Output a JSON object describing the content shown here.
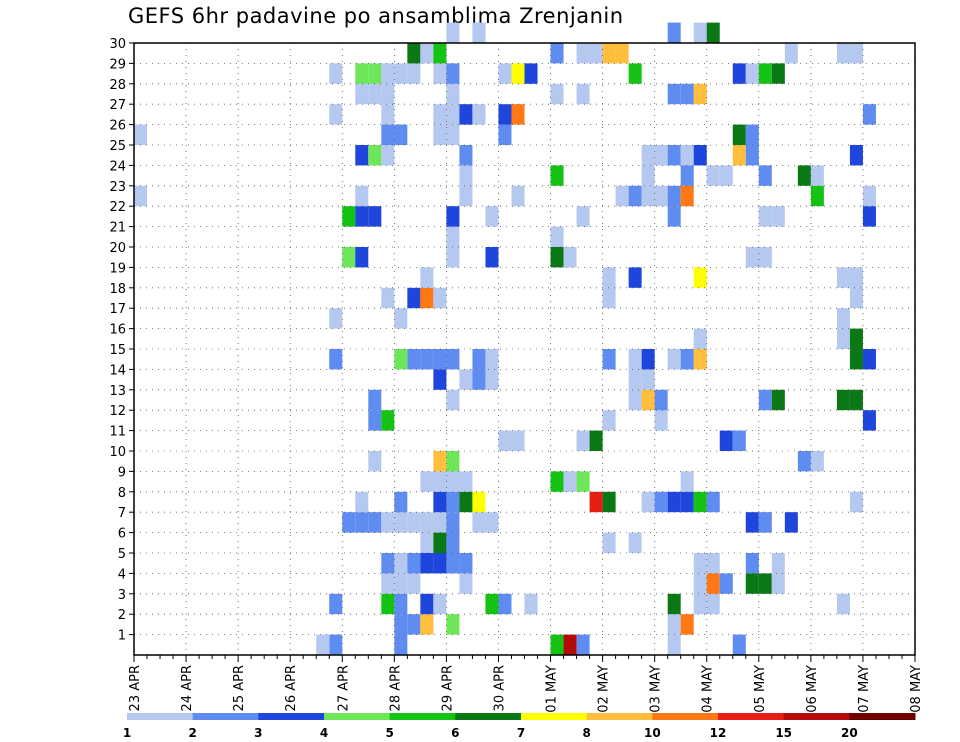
{
  "chart_data": {
    "type": "heatmap",
    "title": "GEFS 6hr padavine po ansamblima Zrenjanin",
    "xlabel": "",
    "ylabel": "",
    "x_ticks": [
      "23 APR",
      "24 APR",
      "25 APR",
      "26 APR",
      "27 APR",
      "28 APR",
      "29 APR",
      "30 APR",
      "01 MAY",
      "02 MAY",
      "03 MAY",
      "04 MAY",
      "05 MAY",
      "06 MAY",
      "07 MAY",
      "08 MAY"
    ],
    "x_range": [
      "2024-04-23T00:00",
      "2024-05-08T00:00"
    ],
    "time_step_hours": 6,
    "y_ticks": [
      1,
      2,
      3,
      4,
      5,
      6,
      7,
      8,
      9,
      10,
      11,
      12,
      13,
      14,
      15,
      16,
      17,
      18,
      19,
      20,
      21,
      22,
      23,
      24,
      25,
      26,
      27,
      28,
      29,
      30
    ],
    "y_range": [
      0,
      30
    ],
    "grid": true,
    "legend_placement": "bottom",
    "color_levels": [
      1,
      2,
      3,
      4,
      5,
      6,
      7,
      8,
      10,
      12,
      15,
      20
    ],
    "colors": [
      "#b4c8f0",
      "#5f8cf0",
      "#1e46dc",
      "#6ee65a",
      "#14c314",
      "#0a7814",
      "#ffff00",
      "#ffbe3c",
      "#ff7814",
      "#e61e14",
      "#b40a0a",
      "#6e0000"
    ],
    "cells": [
      [
        "04-26T18",
        0,
        2
      ],
      [
        "04-26T18",
        2,
        2
      ],
      [
        "04-26T18",
        14,
        2
      ],
      [
        "04-26T18",
        16,
        1
      ],
      [
        "04-26T18",
        26,
        1
      ],
      [
        "04-26T18",
        28,
        1
      ],
      [
        "04-26T12",
        0,
        1
      ],
      [
        "04-23T00",
        22,
        1
      ],
      [
        "04-23T00",
        25,
        1
      ],
      [
        "04-27T00",
        6,
        2
      ],
      [
        "04-27T00",
        21,
        5
      ],
      [
        "04-27T00",
        19,
        4
      ],
      [
        "04-27T06",
        6,
        2
      ],
      [
        "04-27T06",
        7,
        1
      ],
      [
        "04-27T06",
        21,
        3
      ],
      [
        "04-27T06",
        24,
        3
      ],
      [
        "04-27T06",
        19,
        3
      ],
      [
        "04-27T06",
        22,
        1
      ],
      [
        "04-27T06",
        27,
        1
      ],
      [
        "04-27T06",
        28,
        4
      ],
      [
        "04-27T12",
        6,
        2
      ],
      [
        "04-27T12",
        11,
        2
      ],
      [
        "04-27T12",
        12,
        2
      ],
      [
        "04-27T12",
        9,
        1
      ],
      [
        "04-27T12",
        21,
        3
      ],
      [
        "04-27T12",
        24,
        4
      ],
      [
        "04-27T12",
        27,
        1
      ],
      [
        "04-27T12",
        28,
        4
      ],
      [
        "04-27T18",
        6,
        1
      ],
      [
        "04-27T18",
        2,
        5
      ],
      [
        "04-27T18",
        3,
        1
      ],
      [
        "04-27T18",
        4,
        2
      ],
      [
        "04-27T18",
        11,
        5
      ],
      [
        "04-27T18",
        17,
        1
      ],
      [
        "04-27T18",
        24,
        1
      ],
      [
        "04-27T18",
        25,
        2
      ],
      [
        "04-27T18",
        26,
        1
      ],
      [
        "04-27T18",
        27,
        1
      ],
      [
        "04-27T18",
        28,
        1
      ],
      [
        "04-28T00",
        0,
        2
      ],
      [
        "04-28T00",
        1,
        2
      ],
      [
        "04-28T00",
        2,
        2
      ],
      [
        "04-28T00",
        3,
        1
      ],
      [
        "04-28T00",
        4,
        1
      ],
      [
        "04-28T00",
        6,
        1
      ],
      [
        "04-28T00",
        7,
        2
      ],
      [
        "04-28T00",
        14,
        4
      ],
      [
        "04-28T00",
        16,
        1
      ],
      [
        "04-28T00",
        25,
        2
      ],
      [
        "04-28T00",
        28,
        1
      ],
      [
        "04-28T06",
        1,
        2
      ],
      [
        "04-28T06",
        3,
        1
      ],
      [
        "04-28T06",
        4,
        2
      ],
      [
        "04-28T06",
        6,
        1
      ],
      [
        "04-28T06",
        14,
        2
      ],
      [
        "04-28T06",
        17,
        3
      ],
      [
        "04-28T06",
        28,
        1
      ],
      [
        "04-28T06",
        29,
        6
      ],
      [
        "04-28T12",
        1,
        8
      ],
      [
        "04-28T12",
        2,
        3
      ],
      [
        "04-28T12",
        4,
        3
      ],
      [
        "04-28T12",
        5,
        1
      ],
      [
        "04-28T12",
        6,
        1
      ],
      [
        "04-28T12",
        8,
        1
      ],
      [
        "04-28T12",
        14,
        2
      ],
      [
        "04-28T12",
        17,
        9
      ],
      [
        "04-28T12",
        18,
        1
      ],
      [
        "04-28T12",
        29,
        1
      ],
      [
        "04-28T18",
        2,
        1
      ],
      [
        "04-28T18",
        4,
        3
      ],
      [
        "04-28T18",
        5,
        6
      ],
      [
        "04-28T18",
        6,
        1
      ],
      [
        "04-28T18",
        7,
        3
      ],
      [
        "04-28T18",
        8,
        1
      ],
      [
        "04-28T18",
        9,
        8
      ],
      [
        "04-28T18",
        13,
        3
      ],
      [
        "04-28T18",
        14,
        2
      ],
      [
        "04-28T18",
        17,
        1
      ],
      [
        "04-28T18",
        25,
        1
      ],
      [
        "04-28T18",
        26,
        1
      ],
      [
        "04-28T18",
        28,
        1
      ],
      [
        "04-28T18",
        29,
        5
      ],
      [
        "04-29T00",
        1,
        4
      ],
      [
        "04-29T00",
        4,
        2
      ],
      [
        "04-29T00",
        5,
        2
      ],
      [
        "04-29T00",
        6,
        2
      ],
      [
        "04-29T00",
        7,
        2
      ],
      [
        "04-29T00",
        8,
        1
      ],
      [
        "04-29T00",
        9,
        4
      ],
      [
        "04-29T00",
        12,
        1
      ],
      [
        "04-29T00",
        14,
        2
      ],
      [
        "04-29T00",
        19,
        1
      ],
      [
        "04-29T00",
        20,
        1
      ],
      [
        "04-29T00",
        21,
        3
      ],
      [
        "04-29T00",
        25,
        1
      ],
      [
        "04-29T00",
        26,
        1
      ],
      [
        "04-29T00",
        27,
        1
      ],
      [
        "04-29T00",
        28,
        2
      ],
      [
        "04-29T00",
        30,
        1
      ],
      [
        "04-29T06",
        3,
        1
      ],
      [
        "04-29T06",
        4,
        2
      ],
      [
        "04-29T06",
        7,
        6
      ],
      [
        "04-29T06",
        8,
        1
      ],
      [
        "04-29T06",
        13,
        1
      ],
      [
        "04-29T06",
        22,
        1
      ],
      [
        "04-29T06",
        23,
        1
      ],
      [
        "04-29T06",
        24,
        2
      ],
      [
        "04-29T06",
        26,
        3
      ],
      [
        "04-29T12",
        6,
        1
      ],
      [
        "04-29T12",
        7,
        7
      ],
      [
        "04-29T12",
        13,
        2
      ],
      [
        "04-29T12",
        14,
        2
      ],
      [
        "04-29T12",
        26,
        1
      ],
      [
        "04-29T12",
        30,
        1
      ],
      [
        "04-29T18",
        2,
        5
      ],
      [
        "04-29T18",
        6,
        1
      ],
      [
        "04-29T18",
        13,
        1
      ],
      [
        "04-29T18",
        14,
        1
      ],
      [
        "04-29T18",
        19,
        3
      ],
      [
        "04-29T18",
        21,
        1
      ],
      [
        "04-30T00",
        2,
        2
      ],
      [
        "04-30T00",
        10,
        1
      ],
      [
        "04-30T00",
        25,
        2
      ],
      [
        "04-30T00",
        26,
        3
      ],
      [
        "04-30T00",
        28,
        1
      ],
      [
        "04-30T06",
        10,
        1
      ],
      [
        "04-30T06",
        22,
        1
      ],
      [
        "04-30T06",
        26,
        9
      ],
      [
        "04-30T06",
        28,
        7
      ],
      [
        "04-30T12",
        2,
        1
      ],
      [
        "04-30T12",
        28,
        3
      ],
      [
        "05-01T00",
        0,
        5
      ],
      [
        "05-01T00",
        8,
        5
      ],
      [
        "05-01T00",
        19,
        6
      ],
      [
        "05-01T00",
        20,
        1
      ],
      [
        "05-01T00",
        23,
        5
      ],
      [
        "05-01T00",
        27,
        1
      ],
      [
        "05-01T00",
        29,
        2
      ],
      [
        "05-01T06",
        0,
        11
      ],
      [
        "05-01T06",
        8,
        1
      ],
      [
        "05-01T06",
        19,
        1
      ],
      [
        "05-01T12",
        0,
        2
      ],
      [
        "05-01T12",
        8,
        4
      ],
      [
        "05-01T12",
        10,
        1
      ],
      [
        "05-01T12",
        21,
        1
      ],
      [
        "05-01T12",
        27,
        1
      ],
      [
        "05-01T12",
        29,
        1
      ],
      [
        "05-01T18",
        7,
        10
      ],
      [
        "05-01T18",
        10,
        6
      ],
      [
        "05-01T18",
        29,
        1
      ],
      [
        "05-02T00",
        5,
        1
      ],
      [
        "05-02T00",
        7,
        6
      ],
      [
        "05-02T00",
        11,
        1
      ],
      [
        "05-02T00",
        14,
        2
      ],
      [
        "05-02T00",
        17,
        1
      ],
      [
        "05-02T00",
        18,
        1
      ],
      [
        "05-02T00",
        29,
        8
      ],
      [
        "05-02T06",
        29,
        8
      ],
      [
        "05-02T06",
        22,
        1
      ],
      [
        "05-02T12",
        5,
        1
      ],
      [
        "05-02T12",
        13,
        1
      ],
      [
        "05-02T12",
        14,
        1
      ],
      [
        "05-02T12",
        12,
        1
      ],
      [
        "05-02T12",
        18,
        3
      ],
      [
        "05-02T12",
        22,
        2
      ],
      [
        "05-02T12",
        28,
        5
      ],
      [
        "05-02T18",
        7,
        1
      ],
      [
        "05-02T18",
        12,
        8
      ],
      [
        "05-02T18",
        13,
        1
      ],
      [
        "05-02T18",
        14,
        3
      ],
      [
        "05-02T18",
        22,
        1
      ],
      [
        "05-02T18",
        23,
        1
      ],
      [
        "05-02T18",
        24,
        1
      ],
      [
        "05-03T00",
        7,
        2
      ],
      [
        "05-03T00",
        11,
        1
      ],
      [
        "05-03T00",
        12,
        2
      ],
      [
        "05-03T00",
        22,
        1
      ],
      [
        "05-03T00",
        24,
        1
      ],
      [
        "05-03T06",
        0,
        1
      ],
      [
        "05-03T06",
        1,
        1
      ],
      [
        "05-03T06",
        2,
        6
      ],
      [
        "05-03T06",
        7,
        3
      ],
      [
        "05-03T06",
        14,
        1
      ],
      [
        "05-03T06",
        21,
        2
      ],
      [
        "05-03T06",
        22,
        2
      ],
      [
        "05-03T06",
        24,
        2
      ],
      [
        "05-03T06",
        27,
        2
      ],
      [
        "05-03T06",
        30,
        2
      ],
      [
        "05-03T12",
        1,
        9
      ],
      [
        "05-03T12",
        7,
        3
      ],
      [
        "05-03T12",
        8,
        1
      ],
      [
        "05-03T12",
        14,
        2
      ],
      [
        "05-03T12",
        22,
        9
      ],
      [
        "05-03T12",
        23,
        2
      ],
      [
        "05-03T12",
        24,
        1
      ],
      [
        "05-03T12",
        27,
        2
      ],
      [
        "05-03T18",
        2,
        1
      ],
      [
        "05-03T18",
        3,
        1
      ],
      [
        "05-03T18",
        4,
        1
      ],
      [
        "05-03T18",
        7,
        5
      ],
      [
        "05-03T18",
        14,
        8
      ],
      [
        "05-03T18",
        15,
        1
      ],
      [
        "05-03T18",
        18,
        7
      ],
      [
        "05-03T18",
        24,
        3
      ],
      [
        "05-03T18",
        27,
        8
      ],
      [
        "05-03T18",
        30,
        1
      ],
      [
        "05-04T00",
        2,
        1
      ],
      [
        "05-04T00",
        3,
        9
      ],
      [
        "05-04T00",
        4,
        1
      ],
      [
        "05-04T00",
        7,
        2
      ],
      [
        "05-04T00",
        23,
        1
      ],
      [
        "05-04T00",
        30,
        6
      ],
      [
        "05-04T06",
        3,
        2
      ],
      [
        "05-04T06",
        10,
        3
      ],
      [
        "05-04T06",
        23,
        1
      ],
      [
        "05-04T12",
        0,
        2
      ],
      [
        "05-04T12",
        10,
        2
      ],
      [
        "05-04T12",
        24,
        8
      ],
      [
        "05-04T12",
        25,
        6
      ],
      [
        "05-04T12",
        28,
        3
      ],
      [
        "05-04T18",
        3,
        6
      ],
      [
        "05-04T18",
        4,
        2
      ],
      [
        "05-04T18",
        6,
        3
      ],
      [
        "05-04T18",
        19,
        1
      ],
      [
        "05-04T18",
        24,
        2
      ],
      [
        "05-04T18",
        25,
        2
      ],
      [
        "05-04T18",
        28,
        1
      ],
      [
        "05-05T00",
        3,
        6
      ],
      [
        "05-05T00",
        6,
        2
      ],
      [
        "05-05T00",
        12,
        2
      ],
      [
        "05-05T00",
        19,
        1
      ],
      [
        "05-05T00",
        21,
        1
      ],
      [
        "05-05T00",
        23,
        2
      ],
      [
        "05-05T00",
        28,
        5
      ],
      [
        "05-05T06",
        3,
        1
      ],
      [
        "05-05T06",
        4,
        1
      ],
      [
        "05-05T06",
        12,
        6
      ],
      [
        "05-05T06",
        21,
        1
      ],
      [
        "05-05T06",
        28,
        6
      ],
      [
        "05-05T12",
        6,
        3
      ],
      [
        "05-05T12",
        29,
        1
      ],
      [
        "05-05T18",
        9,
        2
      ],
      [
        "05-05T18",
        23,
        6
      ],
      [
        "05-06T00",
        9,
        1
      ],
      [
        "05-06T00",
        22,
        5
      ],
      [
        "05-06T00",
        23,
        1
      ],
      [
        "05-06T12",
        2,
        1
      ],
      [
        "05-06T12",
        12,
        6
      ],
      [
        "05-06T12",
        15,
        1
      ],
      [
        "05-06T12",
        16,
        1
      ],
      [
        "05-06T12",
        18,
        1
      ],
      [
        "05-06T12",
        29,
        1
      ],
      [
        "05-06T18",
        7,
        1
      ],
      [
        "05-06T18",
        12,
        6
      ],
      [
        "05-06T18",
        14,
        6
      ],
      [
        "05-06T18",
        15,
        6
      ],
      [
        "05-06T18",
        17,
        1
      ],
      [
        "05-06T18",
        18,
        1
      ],
      [
        "05-06T18",
        24,
        3
      ],
      [
        "05-06T18",
        29,
        1
      ],
      [
        "05-07T00",
        11,
        3
      ],
      [
        "05-07T00",
        14,
        3
      ],
      [
        "05-07T00",
        21,
        3
      ],
      [
        "05-07T00",
        22,
        1
      ],
      [
        "05-07T00",
        26,
        2
      ]
    ],
    "colorbar_labels": [
      "1",
      "2",
      "3",
      "4",
      "5",
      "6",
      "7",
      "8",
      "10",
      "12",
      "15",
      "20"
    ]
  }
}
